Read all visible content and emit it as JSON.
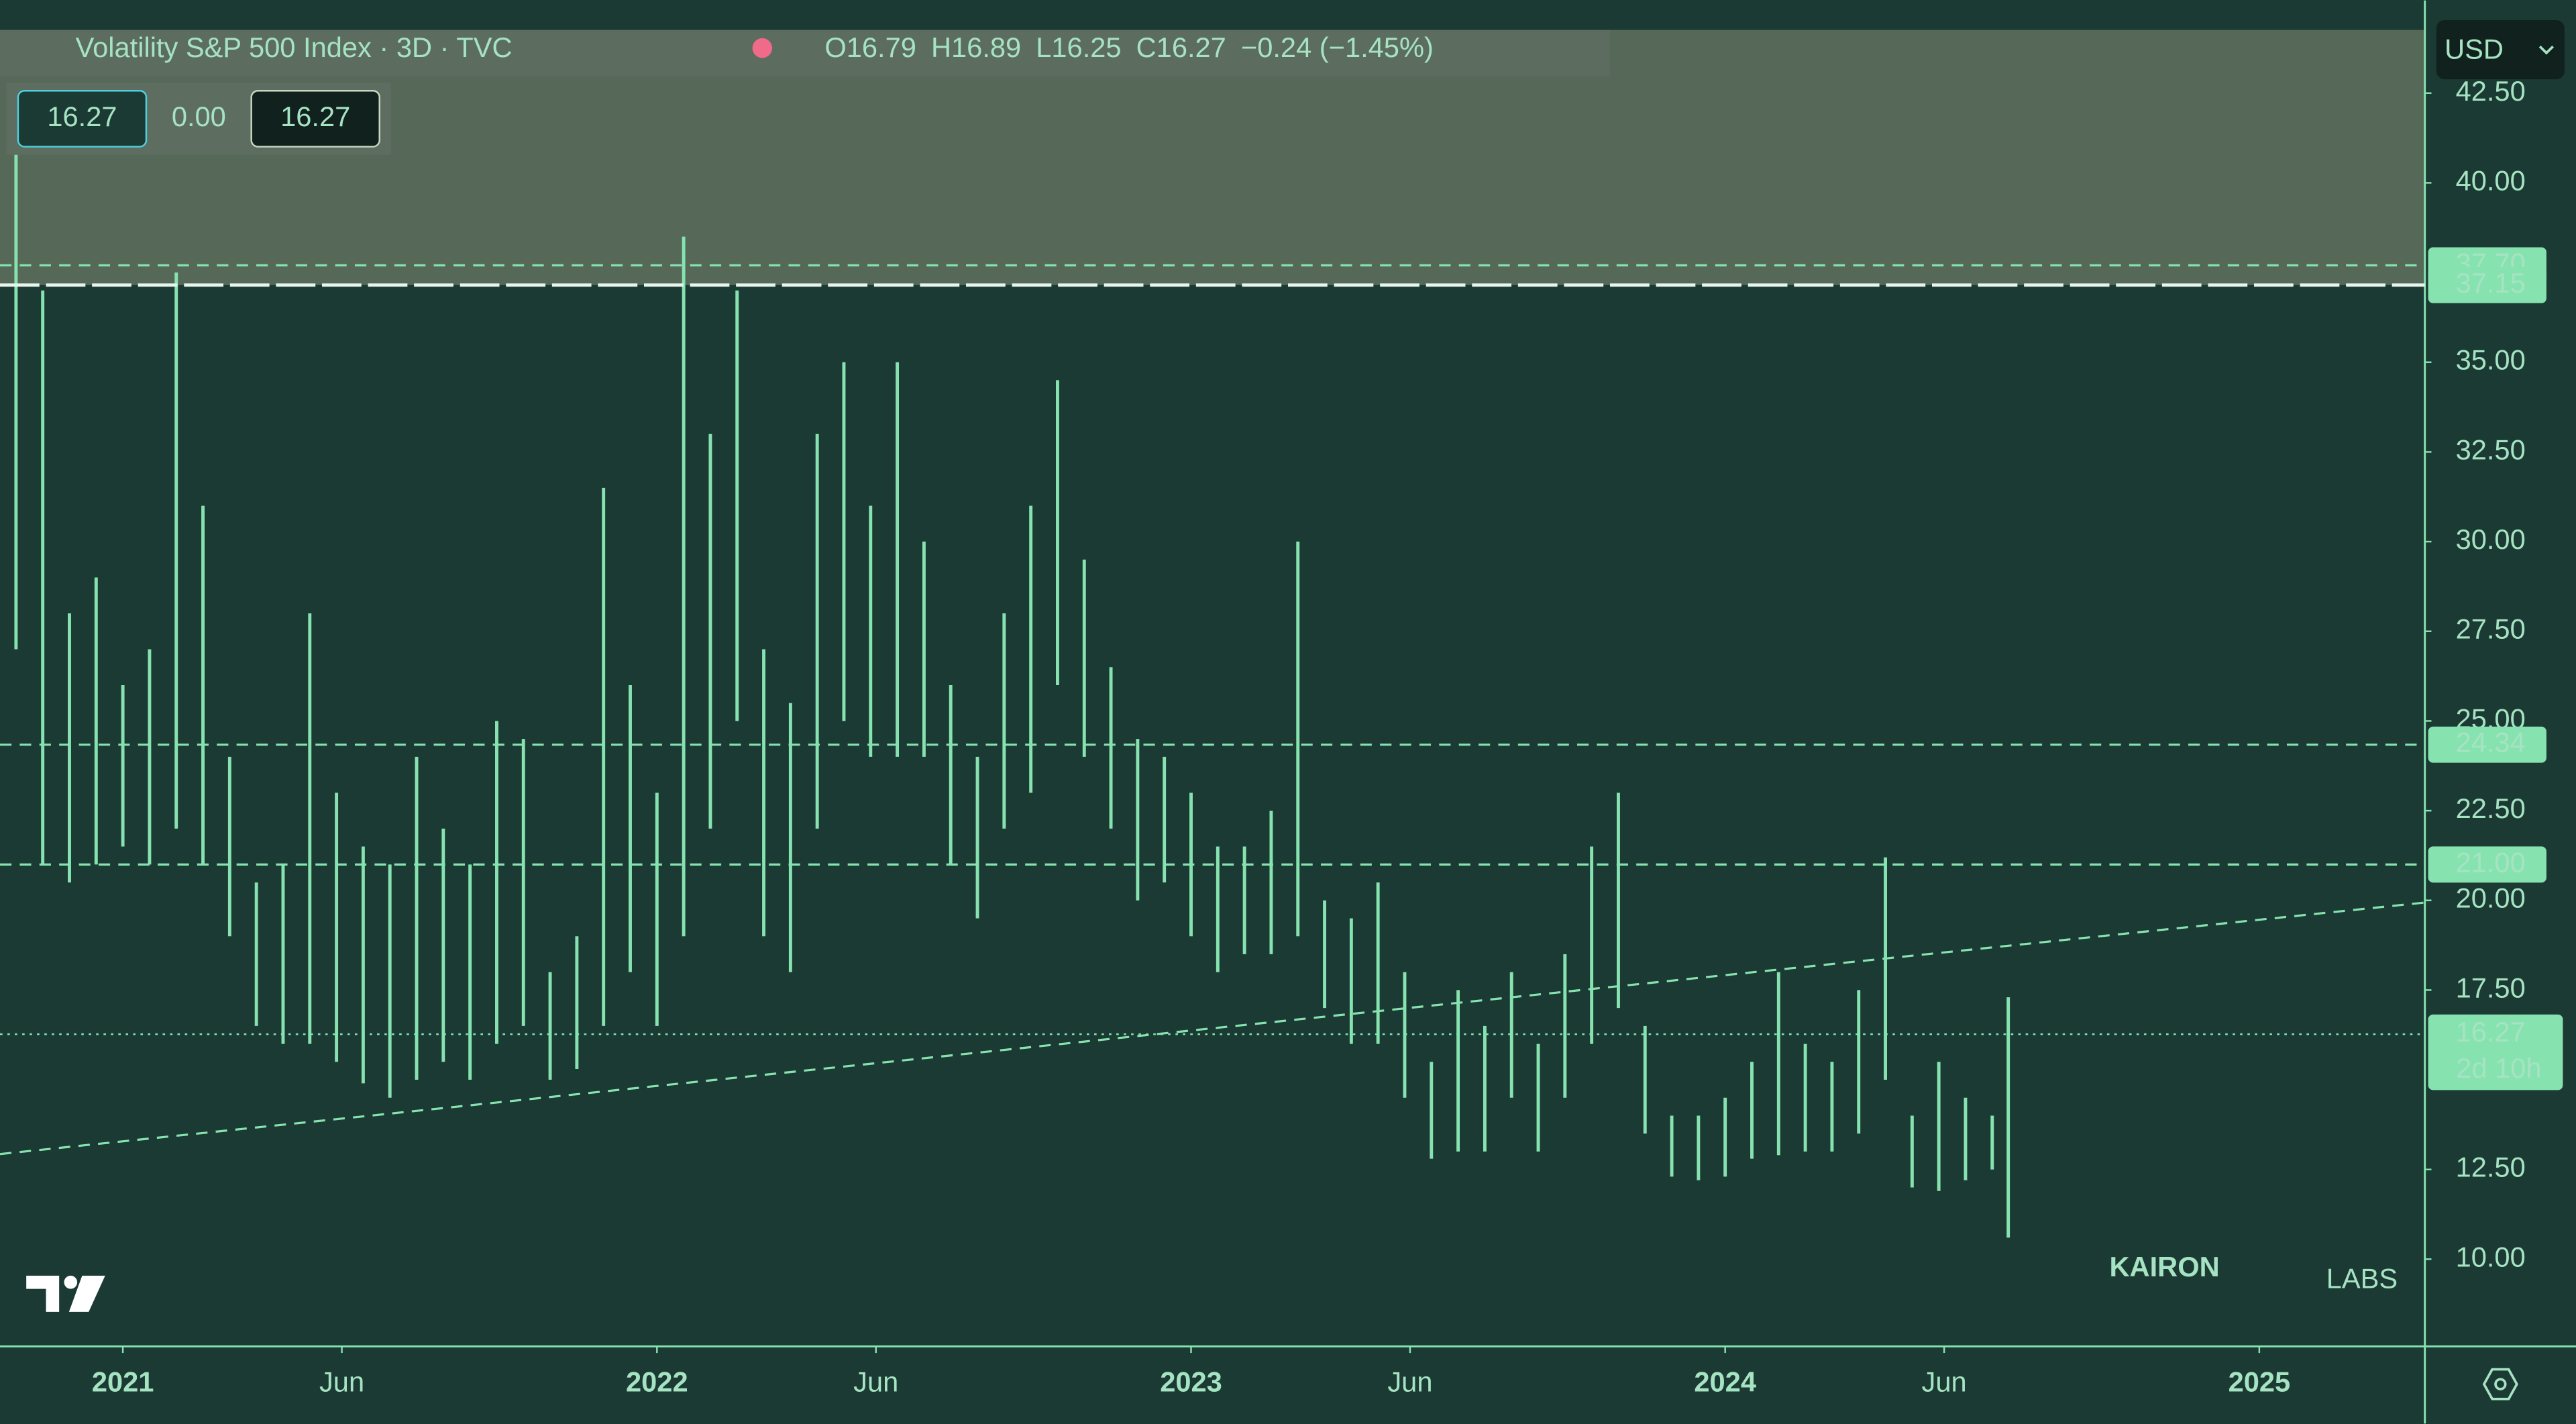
{
  "header": {
    "title": "Volatility S&P 500 Index · 3D · TVC",
    "quote": [
      "O16.79",
      "H16.89",
      "L16.25",
      "C16.27",
      "−0.24 (−1.45%)"
    ],
    "boxes": [
      "16.27",
      "0.00",
      "16.27"
    ],
    "currency": "USD",
    "brand": "KAIRON",
    "brand_sub": "LABS"
  },
  "chart_data": {
    "type": "ohlc",
    "color": "#86e3b0",
    "x": [
      2020.8,
      2020.85,
      2020.9,
      2020.95,
      2021.0,
      2021.05,
      2021.1,
      2021.15,
      2021.2,
      2021.25,
      2021.3,
      2021.35,
      2021.4,
      2021.45,
      2021.5,
      2021.55,
      2021.6,
      2021.65,
      2021.7,
      2021.75,
      2021.8,
      2021.85,
      2021.9,
      2021.95,
      2022.0,
      2022.05,
      2022.1,
      2022.15,
      2022.2,
      2022.25,
      2022.3,
      2022.35,
      2022.4,
      2022.45,
      2022.5,
      2022.55,
      2022.6,
      2022.65,
      2022.7,
      2022.75,
      2022.8,
      2022.85,
      2022.9,
      2022.95,
      2023.0,
      2023.05,
      2023.1,
      2023.15,
      2023.2,
      2023.25,
      2023.3,
      2023.35,
      2023.4,
      2023.45,
      2023.5,
      2023.55,
      2023.6,
      2023.65,
      2023.7,
      2023.75,
      2023.8,
      2023.85,
      2023.9,
      2023.95,
      2024.0,
      2024.05,
      2024.1,
      2024.15,
      2024.2,
      2024.25,
      2024.3,
      2024.35,
      2024.4,
      2024.45,
      2024.5,
      2024.53
    ],
    "high": [
      42,
      37,
      28,
      29,
      26,
      27,
      37.5,
      31,
      24,
      20.5,
      21,
      28,
      23,
      21.5,
      21,
      24,
      22,
      21,
      25,
      24.5,
      18,
      19,
      31.5,
      26,
      23,
      38.5,
      33,
      37,
      27,
      25.5,
      33,
      35,
      31,
      35,
      30,
      26,
      24,
      28,
      31,
      34.5,
      29.5,
      26.5,
      24.5,
      24,
      23,
      21.5,
      21.5,
      22.5,
      30,
      20,
      19.5,
      20.5,
      18,
      15.5,
      17.5,
      16.5,
      18,
      16,
      18.5,
      21.5,
      23,
      16.5,
      14,
      14,
      14.5,
      15.5,
      18,
      16,
      15.5,
      17.5,
      21.2,
      14,
      15.5,
      14.5,
      14,
      17.3
    ],
    "low": [
      27,
      21,
      20.5,
      21,
      21.5,
      21,
      22,
      21,
      19,
      16.5,
      16,
      16,
      15.5,
      14.9,
      14.5,
      15,
      15.5,
      15,
      16,
      16.5,
      15,
      15.3,
      16.5,
      18,
      16.5,
      19,
      22,
      25,
      19,
      18,
      22,
      25,
      24,
      24,
      24,
      21,
      19.5,
      22,
      23,
      26,
      24,
      22,
      20,
      20.5,
      19,
      18,
      18.5,
      18.5,
      19,
      17,
      16,
      16,
      14.5,
      12.8,
      13,
      13,
      14.5,
      13,
      14.5,
      16,
      17,
      13.5,
      12.3,
      12.2,
      12.3,
      12.8,
      12.9,
      13,
      13,
      13.5,
      15,
      12,
      11.9,
      12.2,
      12.5,
      10.6
    ],
    "xlim": [
      2020.77,
      2025.31
    ],
    "xticks": [
      2021,
      {
        "value": 2021.41,
        "label": "Jun"
      },
      2022,
      {
        "value": 2022.41,
        "label": "Jun"
      },
      2023,
      {
        "value": 2023.41,
        "label": "Jun"
      },
      2024,
      {
        "value": 2024.41,
        "label": "Jun"
      },
      2025
    ],
    "ylim": [
      7.57,
      44.26
    ],
    "yticks": [
      {
        "value": 10,
        "label": "10.00"
      },
      {
        "value": 12.5,
        "label": "12.50"
      },
      {
        "value": 17.5,
        "label": "17.50"
      },
      {
        "value": 20,
        "label": "20.00"
      },
      {
        "value": 22.5,
        "label": "22.50"
      },
      {
        "value": 25,
        "label": "25.00"
      },
      {
        "value": 27.5,
        "label": "27.50"
      },
      {
        "value": 30,
        "label": "30.00"
      },
      {
        "value": 32.5,
        "label": "32.50"
      },
      {
        "value": 35,
        "label": "35.00"
      },
      {
        "value": 40,
        "label": "40.00"
      },
      {
        "value": 42.5,
        "label": "42.50"
      }
    ],
    "levels": [
      {
        "value": 37.7,
        "label": "37.70"
      },
      37.15,
      24.34,
      {
        "value": 21,
        "label": "21.00"
      }
    ],
    "trendline": {
      "x": [
        2020.77,
        2025.31
      ],
      "y": [
        12.93,
        19.94
      ]
    },
    "last": 16.27,
    "countdown": "2d 10h"
  }
}
